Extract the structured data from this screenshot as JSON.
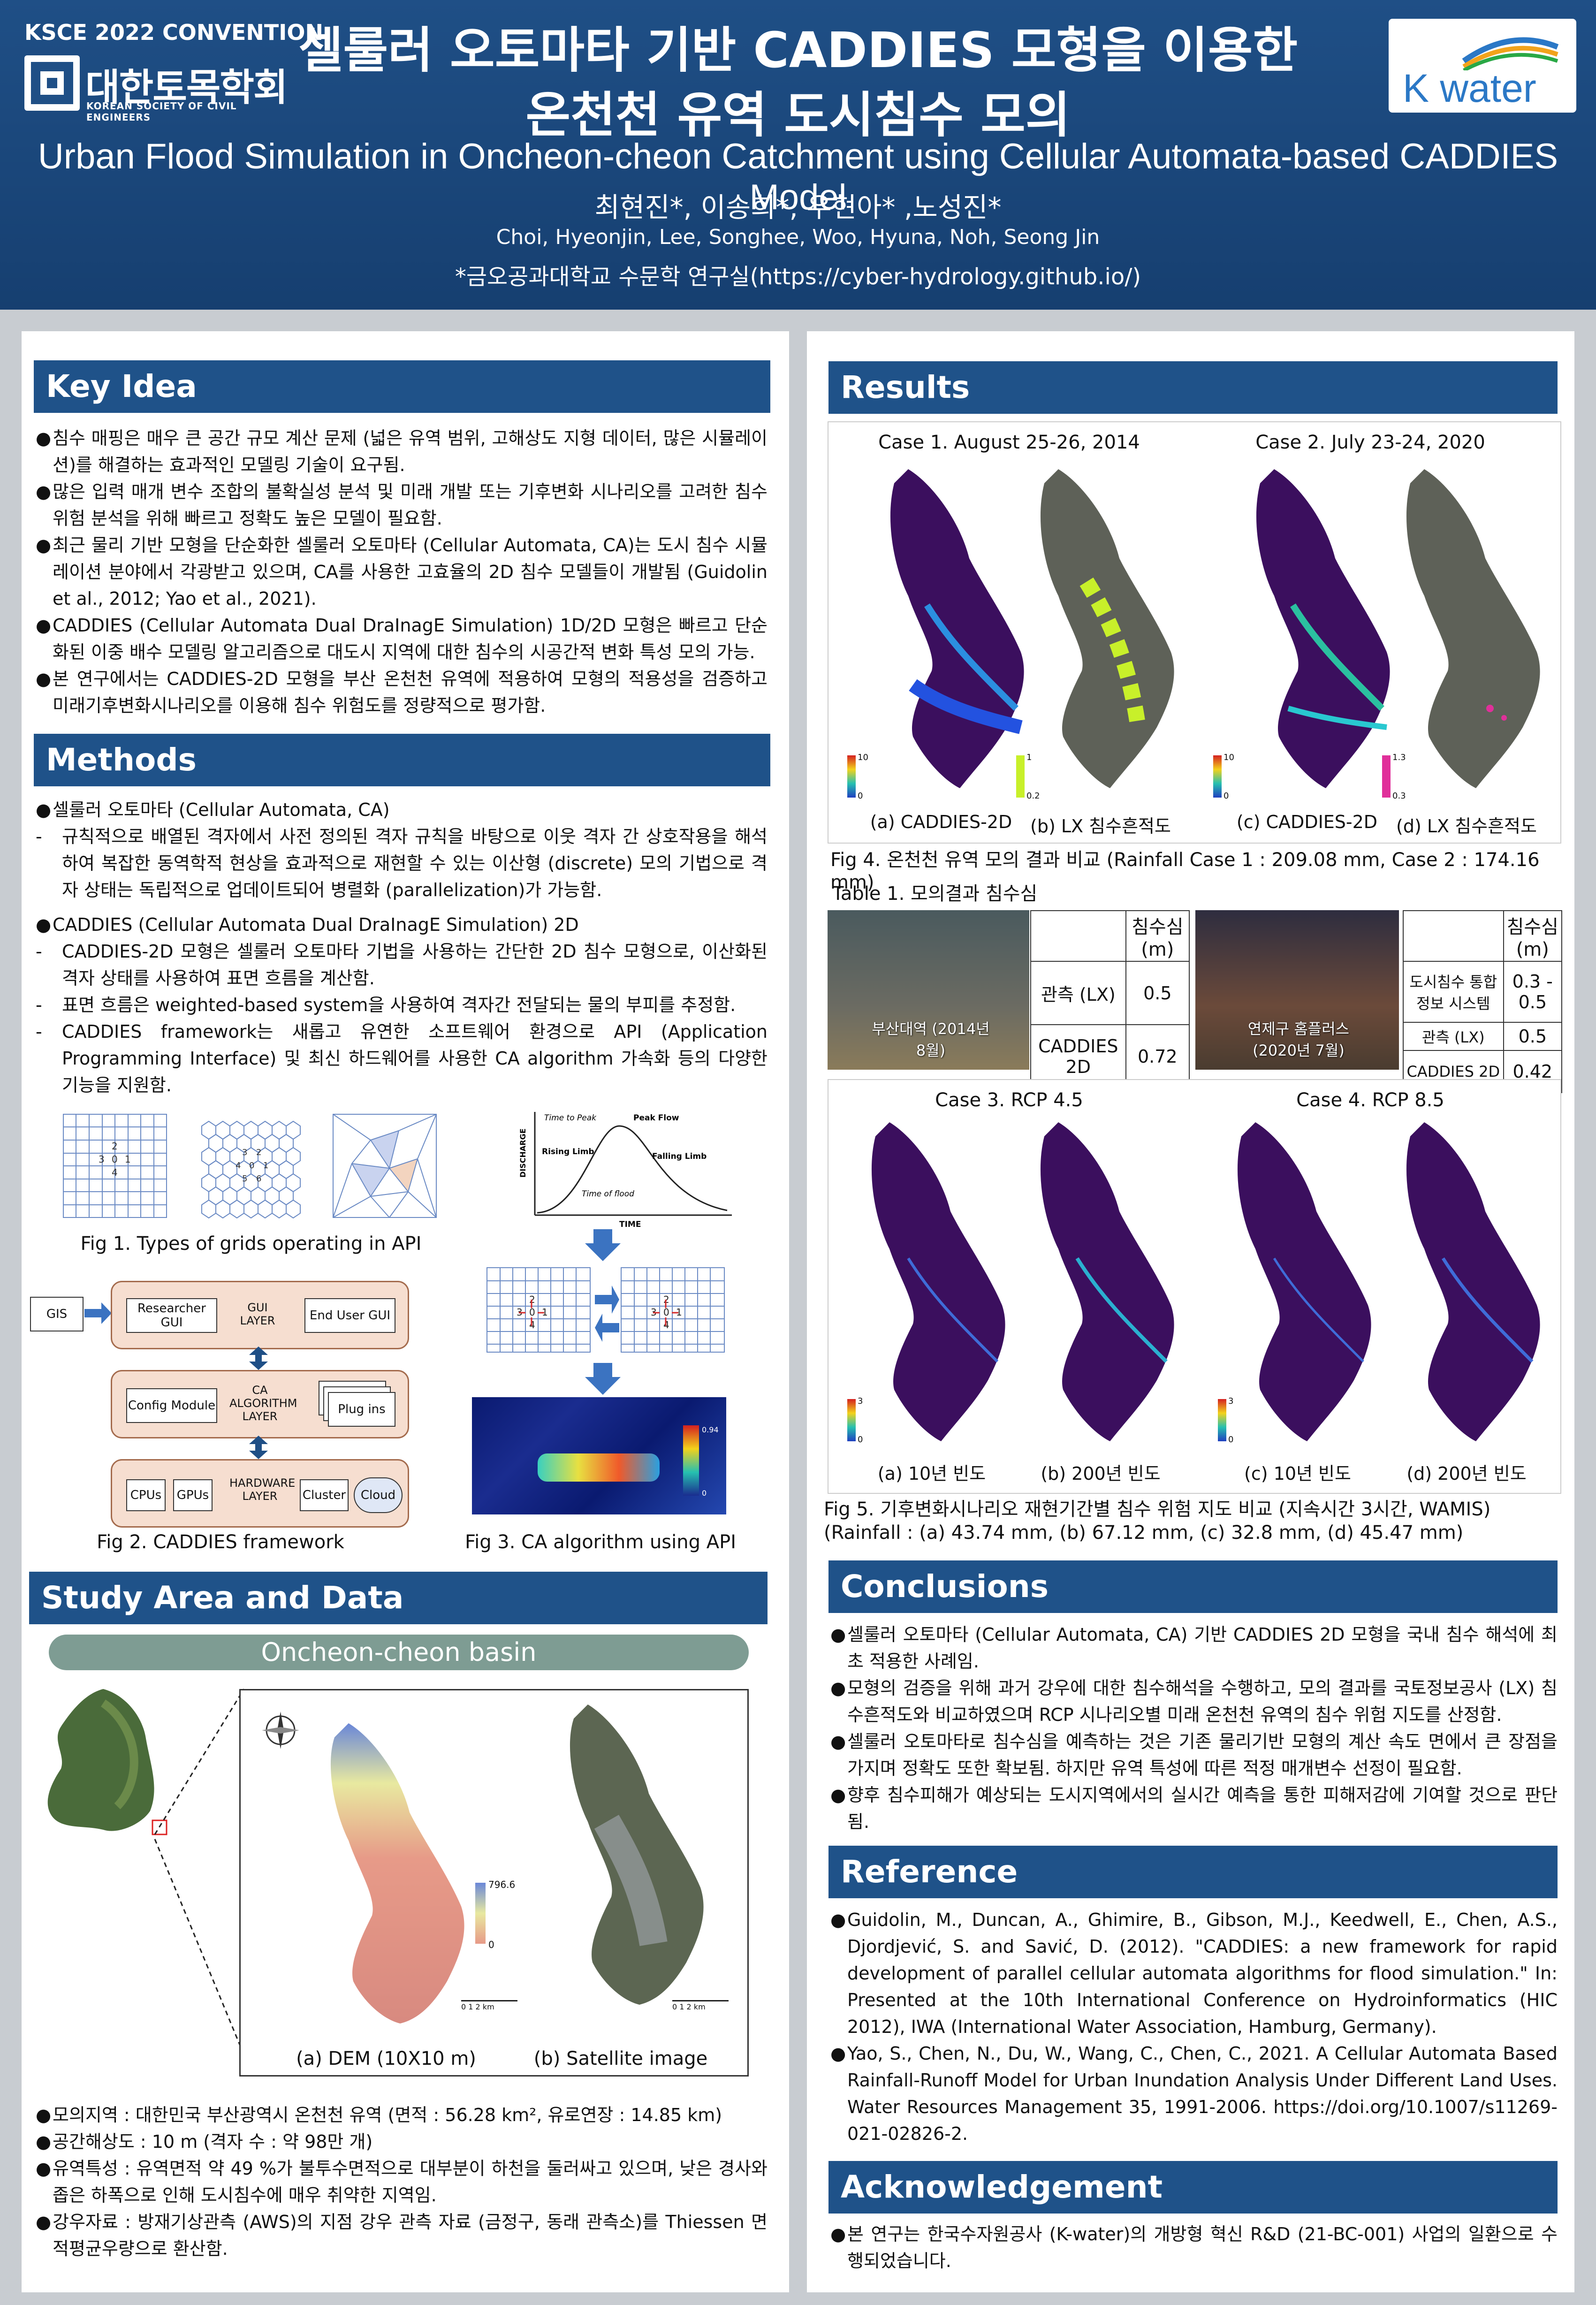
{
  "header": {
    "convention": "KSCE 2022 CONVENTION",
    "society_ko": "대한토목학회",
    "society_en": "KOREAN SOCIETY OF CIVIL ENGINEERS",
    "title_ko_line1": "셀룰러 오토마타 기반 CADDIES 모형을 이용한",
    "title_ko_line2": "온천천 유역 도시침수 모의",
    "title_en": "Urban Flood Simulation in Oncheon-cheon Catchment using Cellular Automata-based CADDIES Model",
    "authors_ko": "최현진*, 이송희*, 우현아* ,노성진*",
    "authors_en": "Choi, Hyeonjin, Lee, Songhee, Woo, Hyuna, Noh, Seong Jin",
    "affiliation": "*금오공과대학교 수문학 연구실(https://cyber-hydrology.github.io/)",
    "kwater": "K water"
  },
  "key_idea": {
    "heading": "Key Idea",
    "bullets": [
      "침수 매핑은 매우 큰 공간 규모 계산 문제 (넓은 유역 범위, 고해상도 지형 데이터, 많은 시뮬레이션)를 해결하는 효과적인 모델링 기술이 요구됨.",
      "많은 입력 매개 변수 조합의 불확실성 분석 및 미래 개발 또는 기후변화 시나리오를 고려한 침수 위험 분석을 위해 빠르고 정확도 높은 모델이 필요함.",
      "최근 물리 기반 모형을 단순화한 셀룰러 오토마타 (Cellular Automata, CA)는 도시 침수 시뮬레이션 분야에서 각광받고 있으며, CA를 사용한 고효율의 2D 침수 모델들이 개발됨 (Guidolin et al., 2012; Yao et al., 2021).",
      "CADDIES (Cellular Automata Dual DraInagE Simulation) 1D/2D 모형은 빠르고 단순화된 이중 배수 모델링 알고리즘으로 대도시 지역에 대한 침수의 시공간적 변화 특성 모의 가능.",
      "본 연구에서는 CADDIES-2D 모형을 부산 온천천 유역에 적용하여 모형의 적용성을 검증하고 미래기후변화시나리오를 이용해 침수 위험도를 정량적으로 평가함."
    ]
  },
  "methods": {
    "heading": "Methods",
    "b1": "셀룰러 오토마타 (Cellular Automata, CA)",
    "d1": "규칙적으로 배열된 격자에서 사전 정의된 격자 규칙을 바탕으로 이웃 격자 간 상호작용을 해석하여 복잡한 동역학적 현상을 효과적으로 재현할 수 있는 이산형 (discrete) 모의 기법으로 격자 상태는 독립적으로 업데이트되어 병렬화 (parallelization)가 가능함.",
    "b2": "CADDIES (Cellular Automata Dual DraInagE Simulation) 2D",
    "d2": "CADDIES-2D 모형은 셀룰러 오토마타 기법을 사용하는 간단한 2D 침수 모형으로, 이산화된 격자 상태를 사용하여 표면 흐름을 계산함.",
    "d3": "표면 흐름은 weighted-based system을 사용하여 격자간 전달되는 물의 부피를 추정함.",
    "d4": "CADDIES framework는 새롭고 유연한 소프트웨어 환경으로 API (Application Programming Interface) 및 최신 하드웨어를 사용한 CA algorithm 가속화 등의 다양한 기능을 지원함.",
    "fig1": "Fig 1. Types of grids operating in API",
    "fig2": "Fig 2. CADDIES framework",
    "fig3": "Fig 3. CA algorithm using API",
    "hydro": {
      "ttp": "Time to Peak",
      "peak": "Peak Flow",
      "rising": "Rising Limb",
      "falling": "Falling Limb",
      "tof": "Time of flood",
      "ylabel": "DISCHARGE",
      "xlabel": "TIME"
    },
    "fw": {
      "gis": "GIS",
      "researcher": "Researcher GUI",
      "gui": "GUI LAYER",
      "enduser": "End User GUI",
      "config": "Config Module",
      "ca": "CA ALGORITHM LAYER",
      "plugins": "Plug ins",
      "cpus": "CPUs",
      "gpus": "GPUs",
      "hw": "HARDWARE LAYER",
      "cluster": "Cluster",
      "cloud": "Cloud"
    },
    "cbar_max": "0.94",
    "cbar_min": "0"
  },
  "study": {
    "heading": "Study Area and Data",
    "basin": "Oncheon-cheon basin",
    "dem_label": "(a) DEM (10X10 m)",
    "sat_label": "(b) Satellite image",
    "dem_max": "796.6",
    "dem_min": "0",
    "scale": "0   1    2 km",
    "bullets": [
      "모의지역 : 대한민국 부산광역시 온천천 유역 (면적 : 56.28 km², 유로연장 : 14.85 km)",
      "공간해상도 : 10 m (격자 수 : 약 98만 개)",
      "유역특성 : 유역면적 약 49 %가 불투수면적으로 대부분이 하천을 둘러싸고 있으며, 낮은 경사와 좁은 하폭으로 인해 도시침수에 매우 취약한 지역임.",
      "강우자료 : 방재기상관측 (AWS)의 지점 강우 관측 자료 (금정구, 동래 관측소)를 Thiessen 면적평균우량으로 환산함."
    ]
  },
  "results": {
    "heading": "Results",
    "case1": "Case 1. August 25-26, 2014",
    "case2": "Case 2. July 23-24, 2020",
    "labels_top": [
      "(a) CADDIES-2D",
      "(b) LX 침수흔적도",
      "(c) CADDIES-2D",
      "(d) LX 침수흔적도"
    ],
    "cb_top": [
      [
        "10",
        "0"
      ],
      [
        "1",
        "0.2"
      ],
      [
        "10",
        "0"
      ],
      [
        "1.3",
        "0.3"
      ]
    ],
    "fig4": "Fig 4. 온천천 유역 모의 결과 비교 (Rainfall Case 1 : 209.08 mm, Case 2 : 174.16 mm)",
    "table1": "Table 1. 모의결과 침수심",
    "t1": {
      "head": "침수심 (m)",
      "r1l": "관측 (LX)",
      "r1v": "0.5",
      "r2l": "CADDIES 2D",
      "r2v": "0.72",
      "photo": "부산대역 (2014년 8월)"
    },
    "t2": {
      "head": "침수심 (m)",
      "r0l": "도시침수 통합정보 시스템",
      "r0v": "0.3 - 0.5",
      "r1l": "관측 (LX)",
      "r1v": "0.5",
      "r2l": "CADDIES 2D",
      "r2v": "0.42",
      "photo": "연제구 홈플러스 (2020년 7월)"
    },
    "case3": "Case 3. RCP 4.5",
    "case4": "Case 4. RCP 8.5",
    "labels_bot": [
      "(a) 10년 빈도",
      "(b) 200년 빈도",
      "(c) 10년 빈도",
      "(d) 200년 빈도"
    ],
    "cb_bot": [
      [
        "3",
        "0"
      ],
      [
        "3",
        "0"
      ]
    ],
    "fig5a": "Fig 5. 기후변화시나리오 재현기간별 침수 위험 지도 비교 (지속시간 3시간, WAMIS)",
    "fig5b": "(Rainfall : (a) 43.74 mm, (b) 67.12 mm, (c) 32.8 mm, (d) 45.47 mm)"
  },
  "conclusions": {
    "heading": "Conclusions",
    "bullets": [
      "셀룰러 오토마타 (Cellular Automata, CA) 기반 CADDIES 2D 모형을 국내 침수 해석에 최초 적용한 사례임.",
      "모형의 검증을 위해 과거 강우에 대한 침수해석을 수행하고, 모의 결과를 국토정보공사 (LX) 침수흔적도와 비교하였으며 RCP 시나리오별 미래 온천천 유역의 침수 위험 지도를 산정함.",
      "셀룰러 오토마타로 침수심을 예측하는 것은 기존 물리기반 모형의 계산 속도 면에서 큰 장점을 가지며 정확도 또한 확보됨. 하지만 유역 특성에 따른 적정 매개변수 선정이 필요함.",
      "향후 침수피해가 예상되는 도시지역에서의 실시간 예측을 통한 피해저감에 기여할 것으로 판단됨."
    ]
  },
  "reference": {
    "heading": "Reference",
    "items": [
      "Guidolin, M., Duncan, A., Ghimire, B., Gibson, M.J., Keedwell, E., Chen, A.S., Djordjević, S. and Savić, D. (2012). \"CADDIES: a new framework for rapid development of parallel cellular automata algorithms for flood simulation.\" In: Presented at the 10th International Conference on Hydroinformatics (HIC 2012), IWA (International Water Association, Hamburg, Germany).",
      "Yao, S., Chen, N., Du, W., Wang, C., Chen, C., 2021. A Cellular Automata Based Rainfall-Runoff Model for Urban Inundation Analysis Under Different Land Uses. Water Resources Management 35, 1991-2006. https://doi.org/10.1007/s11269-021-02826-2."
    ]
  },
  "acknowledgement": {
    "heading": "Acknowledgement",
    "text": "본 연구는 한국수자원공사 (K-water)의 개방형 혁신 R&D (21-BC-001) 사업의 일환으로 수행되었습니다."
  }
}
